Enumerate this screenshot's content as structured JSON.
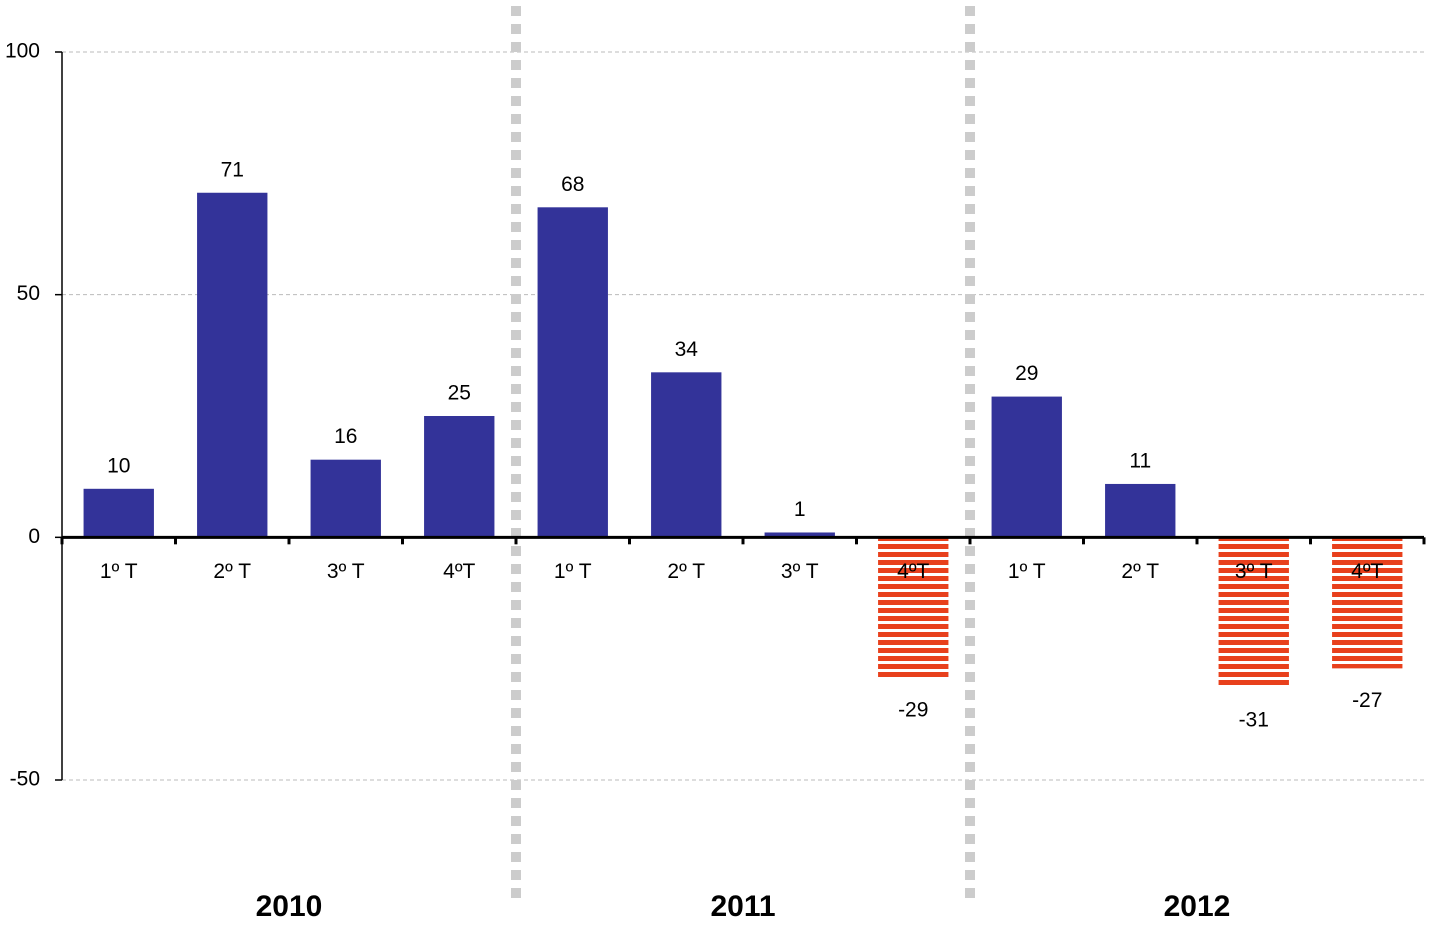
{
  "chart_data": {
    "type": "bar",
    "categories": [
      "1º T",
      "2º T",
      "3º T",
      "4ºT",
      "1º T",
      "2º T",
      "3º T",
      "4ºT",
      "1º T",
      "2º T",
      "3º T",
      "4ºT"
    ],
    "groups": [
      "2010",
      "2011",
      "2012"
    ],
    "values": [
      10,
      71,
      16,
      25,
      68,
      34,
      1,
      -29,
      29,
      11,
      -31,
      -27
    ],
    "color": "#333399",
    "negative_color": "#e8401c",
    "ylim": [
      -50,
      100
    ],
    "yticks": [
      -50,
      0,
      50,
      100
    ],
    "grid": true
  }
}
